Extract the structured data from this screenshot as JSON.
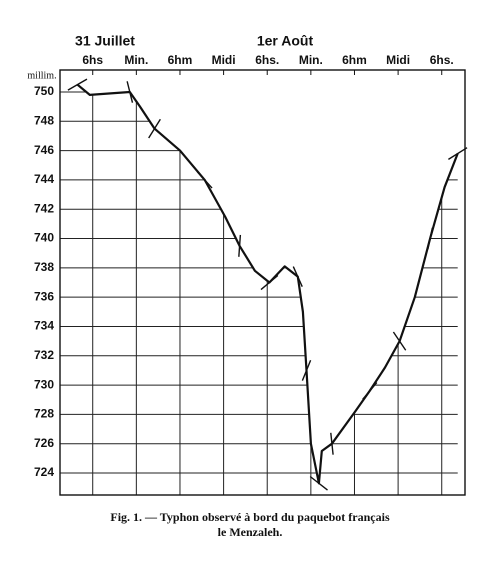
{
  "chart_data": {
    "type": "line",
    "date_labels": [
      "31 Juillet",
      "1er Août"
    ],
    "y_unit_label": "millim.",
    "x": [
      15.9,
      17.6,
      23.1,
      24.5,
      26.5,
      30,
      33.4,
      36.2,
      38.2,
      40.3,
      42.3,
      44.4,
      46.2,
      46.9,
      47.4,
      48,
      49.1,
      49.5,
      50.9,
      54.1,
      56.1,
      58.2,
      60.2,
      62.3,
      64.4,
      66.4,
      68.2
    ],
    "values": [
      750.5,
      749.8,
      750.0,
      749,
      747.5,
      746,
      744,
      741.5,
      739.5,
      737.8,
      737,
      738.1,
      737.4,
      735,
      731,
      726,
      723.3,
      725.5,
      726,
      728.2,
      729.6,
      731.2,
      733,
      736,
      740,
      743.5,
      745.8
    ],
    "color": "#111111",
    "xlim": [
      13.5,
      69.2
    ],
    "xticks": [
      {
        "value": 18,
        "label": "6hs"
      },
      {
        "value": 24,
        "label": "Min."
      },
      {
        "value": 30,
        "label": "6hm"
      },
      {
        "value": 36,
        "label": "Midi"
      },
      {
        "value": 42,
        "label": "6hs."
      },
      {
        "value": 48,
        "label": "Min."
      },
      {
        "value": 54,
        "label": "6hm"
      },
      {
        "value": 60,
        "label": "Midi"
      },
      {
        "value": 66,
        "label": "6hs."
      }
    ],
    "ylim": [
      722.5,
      751.5
    ],
    "yticks": [
      724,
      726,
      728,
      730,
      732,
      734,
      736,
      738,
      740,
      742,
      744,
      746,
      748,
      750
    ],
    "grid": true,
    "caption": [
      "Fig. 1. — Typhon observé à bord du paquebot français",
      "le Menzaleh."
    ]
  }
}
